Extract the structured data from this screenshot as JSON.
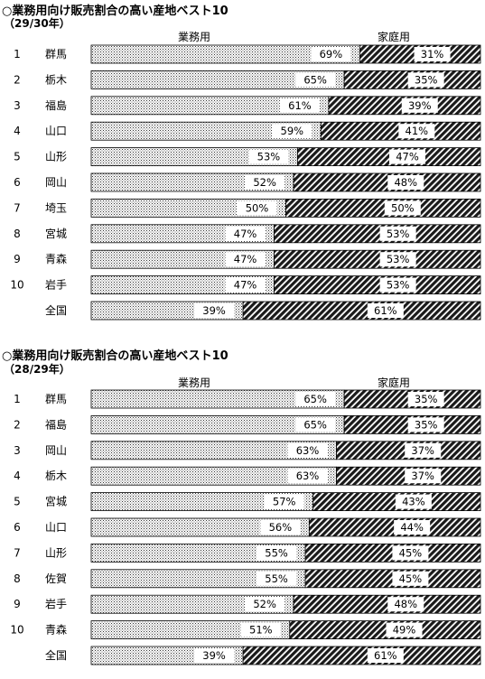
{
  "chart_data": [
    {
      "type": "bar",
      "stacked": true,
      "orientation": "horizontal",
      "title": "○業務用向け販売割合の高い産地ベスト10",
      "subtitle": "（29/30年）",
      "series_labels": [
        "業務用",
        "家庭用"
      ],
      "ranks": [
        "1",
        "2",
        "3",
        "4",
        "5",
        "6",
        "7",
        "8",
        "9",
        "10",
        ""
      ],
      "categories": [
        "群馬",
        "栃木",
        "福島",
        "山口",
        "山形",
        "岡山",
        "埼玉",
        "宮城",
        "青森",
        "岩手",
        "全国"
      ],
      "series": [
        {
          "name": "業務用",
          "values": [
            69,
            65,
            61,
            59,
            53,
            52,
            50,
            47,
            47,
            47,
            39
          ]
        },
        {
          "name": "家庭用",
          "values": [
            31,
            35,
            39,
            41,
            47,
            48,
            50,
            53,
            53,
            53,
            61
          ]
        }
      ],
      "xlim": [
        0,
        100
      ],
      "unit": "%"
    },
    {
      "type": "bar",
      "stacked": true,
      "orientation": "horizontal",
      "title": "○業務用向け販売割合の高い産地ベスト10",
      "subtitle": "（28/29年）",
      "series_labels": [
        "業務用",
        "家庭用"
      ],
      "ranks": [
        "1",
        "2",
        "3",
        "4",
        "5",
        "6",
        "7",
        "8",
        "9",
        "10",
        ""
      ],
      "categories": [
        "群馬",
        "福島",
        "岡山",
        "栃木",
        "宮城",
        "山口",
        "山形",
        "佐賀",
        "岩手",
        "青森",
        "全国"
      ],
      "series": [
        {
          "name": "業務用",
          "values": [
            65,
            65,
            63,
            63,
            57,
            56,
            55,
            55,
            52,
            51,
            39
          ]
        },
        {
          "name": "家庭用",
          "values": [
            35,
            35,
            37,
            37,
            43,
            44,
            45,
            45,
            48,
            49,
            61
          ]
        }
      ],
      "xlim": [
        0,
        100
      ],
      "unit": "%"
    }
  ]
}
